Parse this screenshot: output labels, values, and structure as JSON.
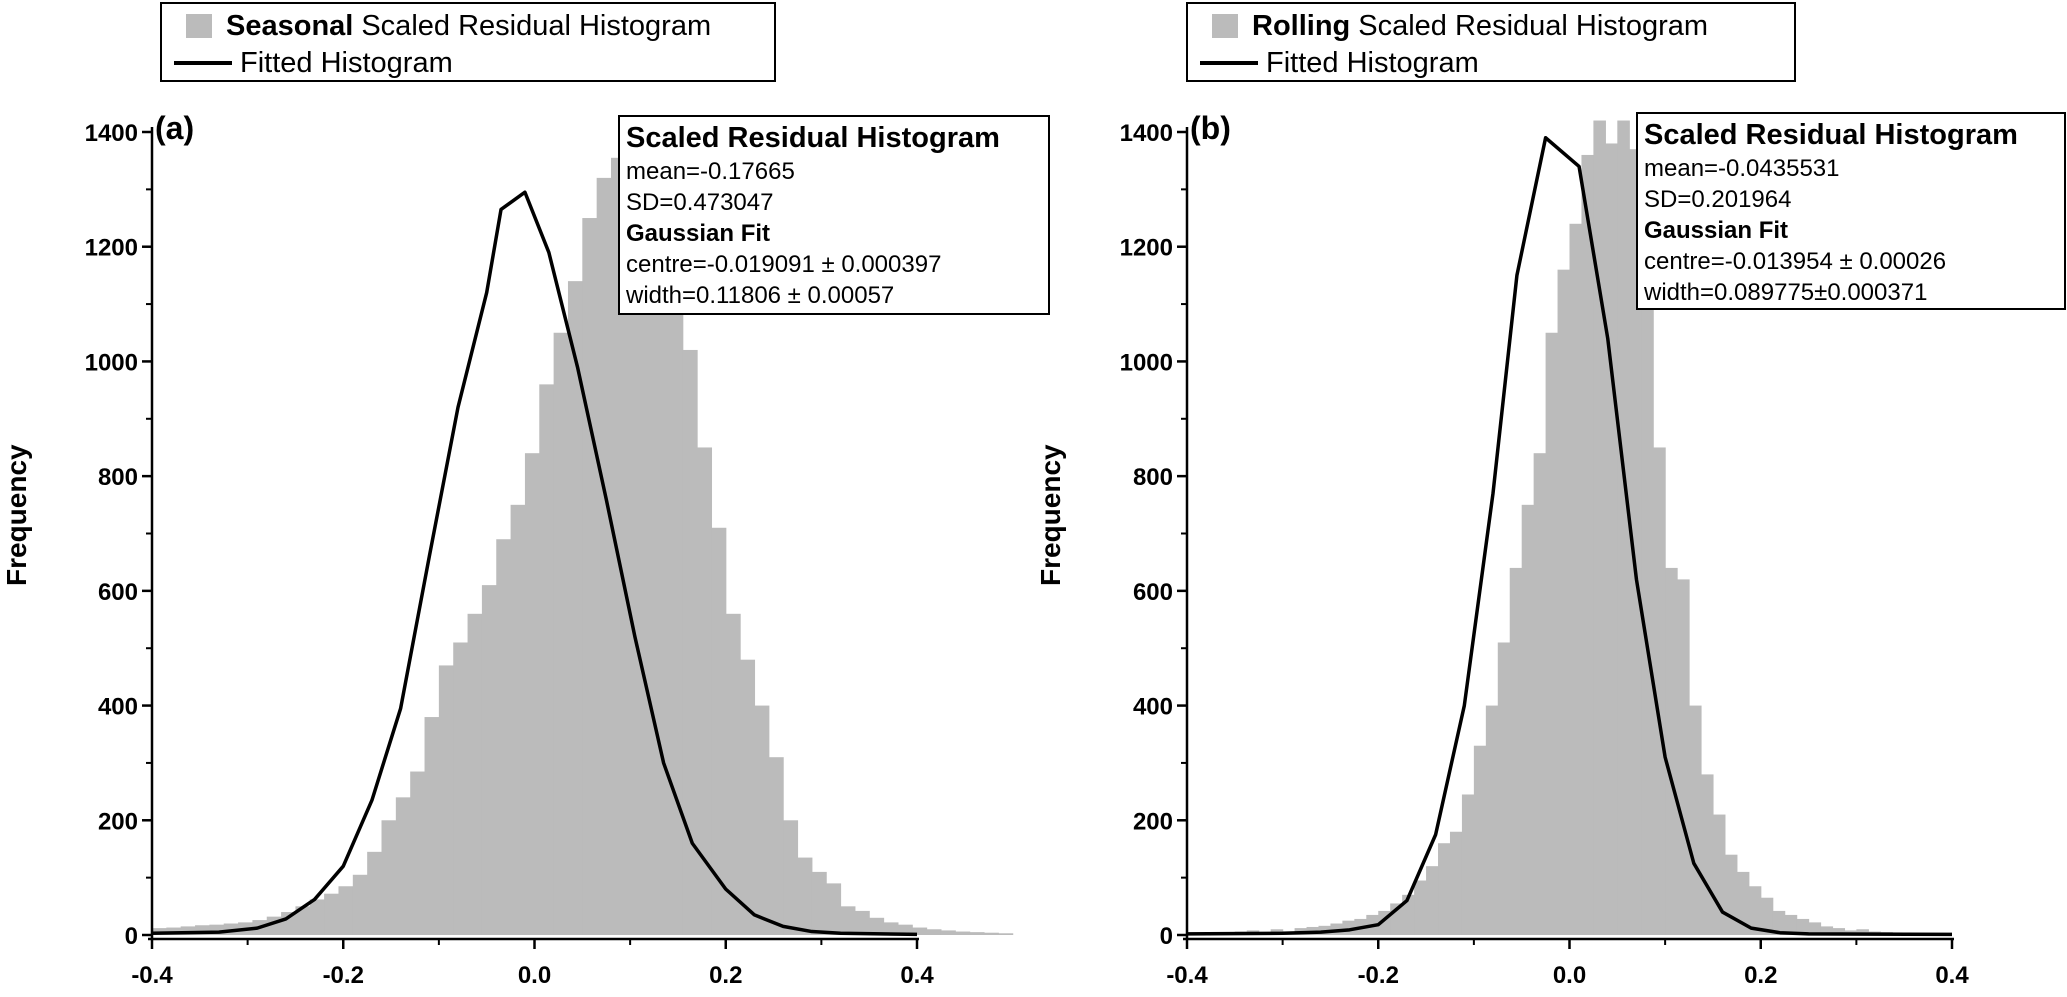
{
  "chart_data": [
    {
      "type": "bar",
      "panel_label": "(a)",
      "ylabel": "Frequency",
      "xlabel": "",
      "xlim": [
        -0.4,
        0.4
      ],
      "ylim": [
        0,
        1400
      ],
      "xticks": [
        "-0.4",
        "-0.2",
        "0.0",
        "0.2",
        "0.4"
      ],
      "yticks": [
        "0",
        "200",
        "400",
        "600",
        "800",
        "1000",
        "1200",
        "1400"
      ],
      "legend": {
        "bar_bold": "Seasonal",
        "bar_rest": "Scaled Residual Histogram",
        "line": "Fitted Histogram"
      },
      "stats": {
        "title": "Scaled Residual Histogram",
        "mean": "mean=-0.17665",
        "sd": "SD=0.473047",
        "fit_title": "Gaussian Fit",
        "centre": "centre=-0.019091 ± 0.000397",
        "width": "width=0.11806 ± 0.00057"
      },
      "series": [
        {
          "kind": "histogram",
          "bin_start": -0.4,
          "bin_width": 0.015,
          "values": [
            12,
            13,
            15,
            17,
            18,
            20,
            22,
            26,
            32,
            40,
            50,
            62,
            72,
            85,
            105,
            145,
            200,
            240,
            285,
            380,
            470,
            510,
            560,
            610,
            690,
            750,
            840,
            960,
            1050,
            1140,
            1250,
            1320,
            1355,
            1315,
            1210,
            1275,
            1140,
            1020,
            850,
            710,
            560,
            480,
            400,
            310,
            200,
            135,
            110,
            90,
            50,
            42,
            30,
            22,
            18,
            13,
            10,
            8,
            6,
            5,
            4,
            3
          ]
        },
        {
          "kind": "line",
          "x": [
            -0.4,
            -0.33,
            -0.29,
            -0.26,
            -0.23,
            -0.2,
            -0.17,
            -0.14,
            -0.11,
            -0.08,
            -0.05,
            -0.035,
            -0.01,
            0.015,
            0.045,
            0.075,
            0.105,
            0.135,
            0.165,
            0.2,
            0.23,
            0.26,
            0.29,
            0.32,
            0.4
          ],
          "y": [
            3,
            5,
            12,
            28,
            62,
            120,
            235,
            395,
            660,
            920,
            1120,
            1265,
            1295,
            1190,
            990,
            760,
            520,
            300,
            160,
            80,
            35,
            15,
            6,
            3,
            1
          ]
        }
      ]
    },
    {
      "type": "bar",
      "panel_label": "(b)",
      "ylabel": "Frequency",
      "xlabel": "",
      "xlim": [
        -0.4,
        0.4
      ],
      "ylim": [
        0,
        1400
      ],
      "xticks": [
        "-0.4",
        "-0.2",
        "0.0",
        "0.2",
        "0.4"
      ],
      "yticks": [
        "0",
        "200",
        "400",
        "600",
        "800",
        "1000",
        "1200",
        "1400"
      ],
      "legend": {
        "bar_bold": "Rolling",
        "bar_rest": "Scaled Residual Histogram",
        "line": "Fitted Histogram"
      },
      "stats": {
        "title": "Scaled Residual Histogram",
        "mean": "mean=-0.0435531",
        "sd": "SD=0.201964",
        "fit_title": "Gaussian Fit",
        "centre": "centre=-0.013954 ± 0.00026",
        "width": "width=0.089775±0.000371"
      },
      "series": [
        {
          "kind": "histogram",
          "bin_start": -0.4,
          "bin_width": 0.0125,
          "values": [
            3,
            4,
            5,
            4,
            6,
            8,
            5,
            10,
            6,
            12,
            14,
            16,
            20,
            25,
            28,
            35,
            42,
            55,
            70,
            95,
            120,
            160,
            180,
            245,
            330,
            400,
            510,
            640,
            750,
            840,
            1050,
            1160,
            1240,
            1360,
            1420,
            1380,
            1420,
            1370,
            1100,
            850,
            640,
            620,
            400,
            280,
            210,
            140,
            110,
            85,
            65,
            42,
            35,
            28,
            22,
            15,
            12,
            8,
            10,
            6,
            5,
            4
          ]
        },
        {
          "kind": "line",
          "x": [
            -0.4,
            -0.3,
            -0.26,
            -0.23,
            -0.2,
            -0.17,
            -0.14,
            -0.11,
            -0.08,
            -0.055,
            -0.025,
            0.01,
            0.04,
            0.07,
            0.1,
            0.13,
            0.16,
            0.19,
            0.22,
            0.25,
            0.4
          ],
          "y": [
            2,
            3,
            5,
            9,
            18,
            60,
            175,
            400,
            770,
            1150,
            1390,
            1340,
            1040,
            620,
            310,
            125,
            40,
            12,
            4,
            2,
            1
          ]
        }
      ]
    }
  ]
}
